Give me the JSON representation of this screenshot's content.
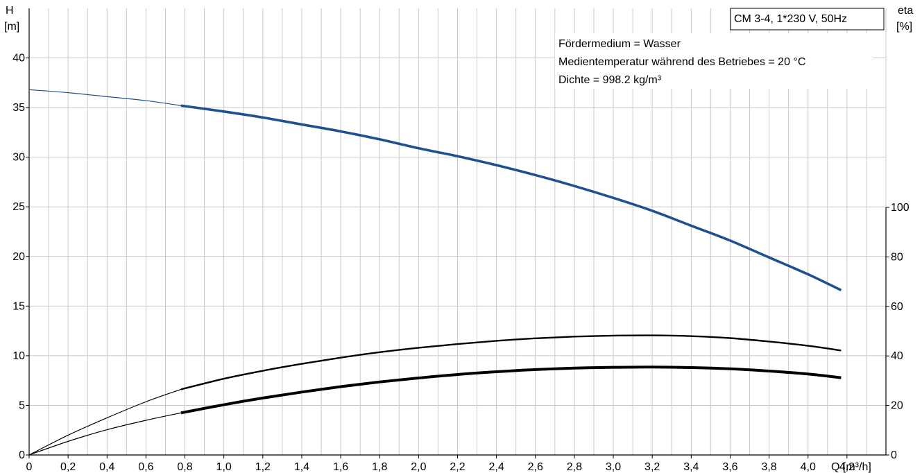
{
  "chart_data": {
    "type": "line",
    "label_box": "CM 3-4, 1*230 V, 50Hz",
    "annotations": [
      "Fördermedium = Wasser",
      "Medientemperatur während des Betriebes = 20 °C",
      "Dichte = 998.2 kg/m³"
    ],
    "x_axis": {
      "label": "Q [m³/h]",
      "range": [
        0,
        4.4
      ],
      "ticks": [
        "0",
        "0,2",
        "0,4",
        "0,6",
        "0,8",
        "1,0",
        "1,2",
        "1,4",
        "1,6",
        "1,8",
        "2,0",
        "2,2",
        "2,4",
        "2,6",
        "2,8",
        "3,0",
        "3,2",
        "3,4",
        "3,6",
        "3,8",
        "4,0",
        "4,2"
      ]
    },
    "y_axis_left": {
      "label_line1": "H",
      "label_line2": "[m]",
      "range": [
        0,
        45
      ],
      "ticks": [
        "0",
        "5",
        "10",
        "15",
        "20",
        "25",
        "30",
        "35",
        "40"
      ]
    },
    "y_axis_right": {
      "label_line1": "eta",
      "label_line2": "[%]",
      "range": [
        0,
        100
      ],
      "ticks": [
        "0",
        "20",
        "40",
        "60",
        "80",
        "100"
      ]
    },
    "grid": true,
    "series": [
      {
        "axis": "left",
        "color": "#1f5191",
        "operating_range_start": 0.78,
        "x": [
          0,
          0.2,
          0.4,
          0.6,
          0.78,
          1.0,
          1.2,
          1.4,
          1.6,
          1.8,
          2.0,
          2.2,
          2.4,
          2.6,
          2.8,
          3.0,
          3.2,
          3.4,
          3.6,
          3.8,
          4.0,
          4.17
        ],
        "values": [
          36.8,
          36.5,
          36.1,
          35.7,
          35.2,
          34.6,
          34.0,
          33.3,
          32.6,
          31.8,
          30.9,
          30.1,
          29.2,
          28.2,
          27.1,
          25.9,
          24.6,
          23.1,
          21.6,
          19.9,
          18.2,
          16.6
        ]
      },
      {
        "axis": "right",
        "color": "#000000",
        "operating_range_start": 0.78,
        "x": [
          0,
          0.2,
          0.4,
          0.6,
          0.78,
          1.0,
          1.2,
          1.4,
          1.6,
          1.8,
          2.0,
          2.2,
          2.4,
          2.6,
          2.8,
          3.0,
          3.2,
          3.4,
          3.6,
          3.8,
          4.0,
          4.17
        ],
        "values": [
          0,
          8,
          15,
          21.5,
          26.5,
          30.8,
          34,
          36.8,
          39.3,
          41.5,
          43.3,
          44.8,
          46.1,
          47.1,
          47.8,
          48.2,
          48.3,
          48.0,
          47.2,
          45.8,
          44.1,
          42.2
        ]
      },
      {
        "axis": "right",
        "color": "#000000",
        "operating_range_start": 0.78,
        "x": [
          0,
          0.2,
          0.4,
          0.6,
          0.78,
          1.0,
          1.2,
          1.4,
          1.6,
          1.8,
          2.0,
          2.2,
          2.4,
          2.6,
          2.8,
          3.0,
          3.2,
          3.4,
          3.6,
          3.8,
          4.0,
          4.17
        ],
        "values": [
          0,
          5.5,
          10.2,
          14,
          17,
          20.3,
          23,
          25.4,
          27.6,
          29.5,
          31.1,
          32.5,
          33.6,
          34.5,
          35.1,
          35.4,
          35.5,
          35.3,
          34.8,
          33.9,
          32.7,
          31.2
        ]
      }
    ]
  }
}
